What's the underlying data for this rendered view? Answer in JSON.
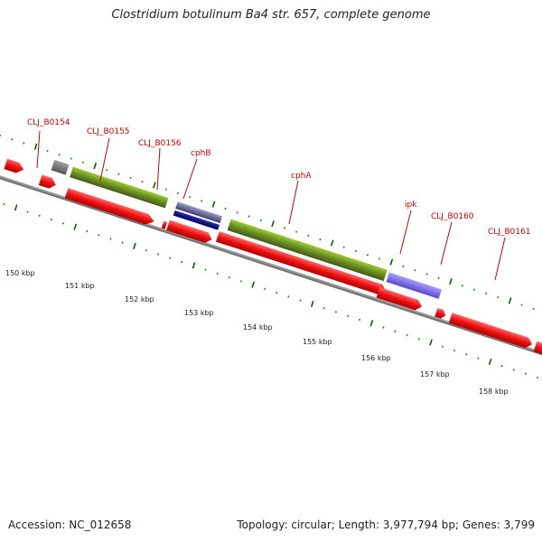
{
  "title": "Clostridium botulinum Ba4 str. 657, complete genome",
  "footer": {
    "accession": "Accession: NC_012658",
    "summary": "Topology: circular; Length: 3,977,794 bp; Genes: 3,799"
  },
  "colors": {
    "cds": "#ee1111",
    "cds_dark": "#aa0000",
    "green": "#6b8e23",
    "gray": "#6f6f6f",
    "navy": "#000080",
    "steel": "#6a6a9a",
    "lavender": "#7b68ee",
    "label": "#cc0000",
    "tick_minor": "#228B22",
    "tick_major": "#006400",
    "backbone": "#808080"
  },
  "scale": {
    "unit": "kbp",
    "labels": [
      "150 kbp",
      "151 kbp",
      "152 kbp",
      "153 kbp",
      "154 kbp",
      "155 kbp",
      "156 kbp",
      "157 kbp",
      "158 kbp"
    ]
  },
  "features": {
    "outer_strand": [
      {
        "color": "gray"
      },
      {
        "color": "green"
      },
      {
        "color": "steel"
      },
      {
        "color": "green"
      },
      {
        "color": "lavender"
      }
    ],
    "inner_strand": [
      {
        "color": "cds"
      },
      {
        "color": "cds"
      },
      {
        "color": "cds"
      },
      {
        "color": "navy"
      },
      {
        "color": "cds"
      },
      {
        "color": "cds"
      },
      {
        "color": "cds"
      },
      {
        "color": "cds"
      },
      {
        "color": "cds"
      },
      {
        "color": "cds"
      },
      {
        "color": "cds"
      }
    ]
  },
  "gene_labels": [
    "CLJ_B0154",
    "CLJ_B0155",
    "CLJ_B0156",
    "cphB",
    "cphA",
    "ipk",
    "CLJ_B0160",
    "CLJ_B0161"
  ]
}
